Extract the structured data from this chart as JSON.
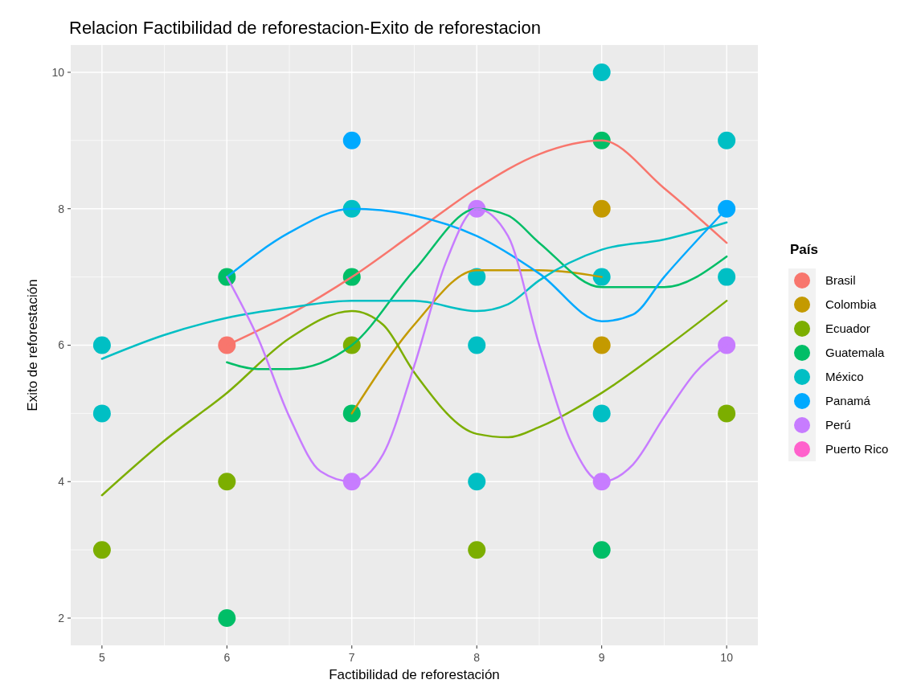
{
  "chart_data": {
    "type": "scatter",
    "title": "Relacion Factibilidad de reforestacion-Exito de reforestacion",
    "xlabel": "Factibilidad de reforestación",
    "ylabel": "Exito de reforestación",
    "legend_title": "País",
    "legend": "right",
    "grid": true,
    "marker": "circle",
    "xlim": [
      4.75,
      10.25
    ],
    "xticks": [
      5,
      6,
      7,
      8,
      9,
      10
    ],
    "ylim": [
      1.6,
      10.4
    ],
    "yticks": [
      2,
      4,
      6,
      8,
      10
    ],
    "series": [
      {
        "type": "line",
        "color": "#f8766d",
        "x": [
          6,
          6.5,
          7,
          7.5,
          8,
          8.5,
          9,
          9.5,
          10
        ],
        "values": [
          6,
          6.45,
          7,
          7.65,
          8.3,
          8.8,
          9,
          8.3,
          7.5
        ],
        "marker": "none"
      },
      {
        "type": "line",
        "color": "#c49a00",
        "x": [
          7,
          7.5,
          8,
          8.5,
          9
        ],
        "values": [
          5,
          6.3,
          7.1,
          7.1,
          7
        ],
        "marker": "none"
      },
      {
        "type": "line",
        "color": "#7cae00",
        "x": [
          5,
          5.5,
          6,
          6.5,
          7,
          7.25,
          7.5,
          8,
          8.25,
          8.5,
          9,
          9.5,
          10
        ],
        "values": [
          3.8,
          4.6,
          5.3,
          6.1,
          6.5,
          6.3,
          5.6,
          4.7,
          4.65,
          4.8,
          5.3,
          5.95,
          6.65
        ],
        "marker": "none"
      },
      {
        "type": "line",
        "color": "#00be67",
        "x": [
          6,
          6.25,
          6.5,
          7,
          7.5,
          8,
          8.25,
          8.5,
          9,
          9.5,
          10
        ],
        "values": [
          5.75,
          5.65,
          5.65,
          6,
          7.1,
          8,
          7.9,
          7.5,
          6.85,
          6.85,
          7.3
        ],
        "marker": "none"
      },
      {
        "type": "line",
        "color": "#00bfc4",
        "x": [
          5,
          5.5,
          6,
          6.5,
          7,
          7.5,
          8,
          8.25,
          8.5,
          9,
          9.5,
          10
        ],
        "values": [
          5.8,
          6.15,
          6.4,
          6.55,
          6.65,
          6.65,
          6.5,
          6.6,
          6.95,
          7.4,
          7.55,
          7.8
        ],
        "marker": "none"
      },
      {
        "type": "line",
        "color": "#00a9ff",
        "x": [
          6,
          6.5,
          7,
          7.5,
          8,
          8.5,
          9,
          9.25,
          9.5,
          10
        ],
        "values": [
          7,
          7.65,
          8,
          7.9,
          7.6,
          7.05,
          6.35,
          6.45,
          7,
          8
        ],
        "marker": "none"
      },
      {
        "type": "line",
        "color": "#c77cff",
        "x": [
          6,
          6.25,
          6.5,
          6.75,
          7,
          7.25,
          7.5,
          7.75,
          8,
          8.25,
          8.5,
          8.75,
          9,
          9.25,
          9.5,
          9.75,
          10
        ],
        "values": [
          7,
          6.1,
          4.95,
          4.15,
          4,
          4.4,
          5.7,
          7.2,
          8,
          7.6,
          6,
          4.6,
          4,
          4.25,
          4.95,
          5.6,
          6
        ],
        "marker": "none"
      },
      {
        "name": "Brasil",
        "color": "#f8766d",
        "x": [
          6
        ],
        "values": [
          6
        ]
      },
      {
        "name": "Colombia",
        "color": "#c49a00",
        "x": [
          9,
          9
        ],
        "values": [
          8,
          6
        ]
      },
      {
        "name": "Ecuador",
        "color": "#7cae00",
        "x": [
          5,
          6,
          7,
          8,
          10
        ],
        "values": [
          3,
          4,
          6,
          3,
          5
        ]
      },
      {
        "name": "Guatemala",
        "color": "#00be67",
        "x": [
          6,
          6,
          7,
          7,
          9,
          9
        ],
        "values": [
          7,
          2,
          7,
          5,
          9,
          3
        ]
      },
      {
        "name": "México",
        "color": "#00bfc4",
        "x": [
          5,
          5,
          7,
          8,
          8,
          8,
          9,
          9,
          9,
          10,
          10
        ],
        "values": [
          6,
          5,
          8,
          7,
          6,
          4,
          10,
          7,
          5,
          9,
          7
        ]
      },
      {
        "name": "Panamá",
        "color": "#00a9ff",
        "x": [
          7,
          10
        ],
        "values": [
          9,
          8
        ]
      },
      {
        "name": "Perú",
        "color": "#c77cff",
        "x": [
          7,
          8,
          9,
          10
        ],
        "values": [
          4,
          8,
          4,
          6
        ]
      },
      {
        "name": "Puerto Rico",
        "color": "#ff61cc"
      }
    ]
  }
}
